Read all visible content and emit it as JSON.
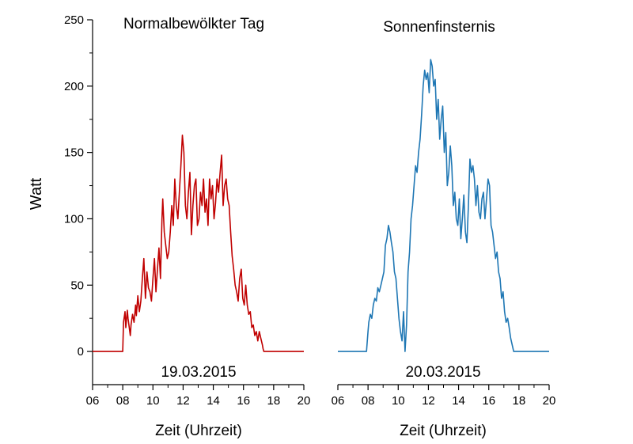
{
  "chart_data": [
    {
      "type": "line",
      "title": "Normalbewölkter Tag",
      "date_label": "19.03.2015",
      "xlabel": "Zeit (Uhrzeit)",
      "ylabel": "Watt",
      "xlim": [
        6,
        20
      ],
      "ylim": [
        -25,
        250
      ],
      "x_ticks": [
        "06",
        "08",
        "10",
        "12",
        "14",
        "16",
        "18",
        "20"
      ],
      "y_ticks": [
        "0",
        "50",
        "100",
        "150",
        "200",
        "250"
      ],
      "color": "#c00000",
      "series": [
        {
          "x": [
            6.0,
            8.0,
            8.05,
            8.15,
            8.2,
            8.3,
            8.35,
            8.5,
            8.55,
            8.65,
            8.75,
            8.85,
            8.9,
            9.0,
            9.1,
            9.2,
            9.3,
            9.4,
            9.5,
            9.6,
            9.7,
            9.8,
            9.9,
            10.0,
            10.1,
            10.2,
            10.3,
            10.4,
            10.5,
            10.6,
            10.65,
            10.75,
            10.85,
            10.95,
            11.05,
            11.15,
            11.25,
            11.35,
            11.45,
            11.55,
            11.65,
            11.75,
            11.85,
            11.95,
            12.05,
            12.15,
            12.25,
            12.35,
            12.45,
            12.55,
            12.65,
            12.75,
            12.85,
            12.95,
            13.05,
            13.15,
            13.25,
            13.35,
            13.45,
            13.55,
            13.65,
            13.75,
            13.85,
            13.95,
            14.05,
            14.15,
            14.25,
            14.35,
            14.45,
            14.55,
            14.65,
            14.75,
            14.85,
            14.95,
            15.05,
            15.15,
            15.25,
            15.35,
            15.45,
            15.55,
            15.65,
            15.75,
            15.85,
            15.95,
            16.05,
            16.15,
            16.25,
            16.35,
            16.45,
            16.55,
            16.65,
            16.75,
            16.85,
            16.95,
            17.05,
            17.15,
            17.25,
            17.3,
            17.35,
            20.0
          ],
          "y": [
            0,
            0,
            22,
            30,
            18,
            31,
            25,
            12,
            20,
            28,
            22,
            35,
            27,
            42,
            30,
            38,
            55,
            70,
            40,
            60,
            48,
            45,
            38,
            55,
            70,
            45,
            62,
            78,
            55,
            100,
            115,
            90,
            80,
            70,
            75,
            90,
            110,
            95,
            130,
            110,
            100,
            120,
            140,
            163,
            150,
            110,
            100,
            120,
            135,
            88,
            110,
            125,
            130,
            95,
            100,
            120,
            110,
            130,
            105,
            115,
            95,
            130,
            115,
            125,
            100,
            112,
            130,
            120,
            135,
            148,
            110,
            125,
            130,
            115,
            110,
            90,
            72,
            62,
            50,
            45,
            38,
            55,
            62,
            40,
            35,
            50,
            35,
            28,
            30,
            18,
            20,
            12,
            15,
            8,
            15,
            10,
            5,
            2,
            0,
            0
          ]
        }
      ]
    },
    {
      "type": "line",
      "title": "Sonnenfinsternis",
      "date_label": "20.03.2015",
      "xlabel": "Zeit (Uhrzeit)",
      "xlim": [
        6,
        20
      ],
      "ylim": [
        -25,
        250
      ],
      "x_ticks": [
        "06",
        "08",
        "10",
        "12",
        "14",
        "16",
        "18",
        "20"
      ],
      "color": "#1f77b4",
      "series": [
        {
          "x": [
            6.0,
            7.9,
            8.0,
            8.05,
            8.15,
            8.25,
            8.35,
            8.45,
            8.55,
            8.65,
            8.75,
            8.85,
            8.95,
            9.05,
            9.15,
            9.25,
            9.35,
            9.45,
            9.55,
            9.65,
            9.75,
            9.85,
            9.95,
            10.05,
            10.15,
            10.25,
            10.35,
            10.45,
            10.55,
            10.65,
            10.75,
            10.85,
            10.95,
            11.05,
            11.15,
            11.25,
            11.35,
            11.45,
            11.55,
            11.65,
            11.75,
            11.85,
            11.95,
            12.05,
            12.15,
            12.25,
            12.35,
            12.45,
            12.55,
            12.65,
            12.75,
            12.85,
            12.95,
            13.05,
            13.15,
            13.25,
            13.35,
            13.45,
            13.55,
            13.65,
            13.75,
            13.85,
            13.95,
            14.05,
            14.15,
            14.25,
            14.35,
            14.45,
            14.55,
            14.65,
            14.75,
            14.85,
            14.95,
            15.05,
            15.15,
            15.25,
            15.35,
            15.45,
            15.55,
            15.65,
            15.75,
            15.85,
            15.95,
            16.05,
            16.15,
            16.25,
            16.35,
            16.45,
            16.55,
            16.65,
            16.75,
            16.85,
            16.95,
            17.05,
            17.15,
            17.25,
            17.35,
            17.45,
            17.55,
            17.65,
            17.75,
            17.85,
            17.95,
            18.05,
            18.15,
            18.25,
            20.0
          ],
          "y": [
            0,
            0,
            15,
            22,
            28,
            25,
            35,
            40,
            38,
            48,
            45,
            50,
            55,
            60,
            80,
            85,
            95,
            90,
            82,
            75,
            60,
            55,
            40,
            25,
            15,
            8,
            30,
            0,
            20,
            60,
            75,
            100,
            110,
            125,
            140,
            135,
            150,
            160,
            178,
            200,
            212,
            205,
            210,
            195,
            220,
            215,
            200,
            205,
            175,
            190,
            160,
            175,
            185,
            150,
            165,
            125,
            135,
            155,
            140,
            110,
            120,
            100,
            95,
            115,
            85,
            100,
            118,
            90,
            82,
            110,
            145,
            135,
            140,
            130,
            110,
            125,
            105,
            100,
            115,
            120,
            100,
            115,
            130,
            125,
            95,
            90,
            80,
            70,
            75,
            60,
            55,
            40,
            45,
            30,
            22,
            25,
            18,
            10,
            5,
            0,
            0,
            0,
            0,
            0,
            0,
            0,
            0
          ]
        }
      ]
    }
  ]
}
